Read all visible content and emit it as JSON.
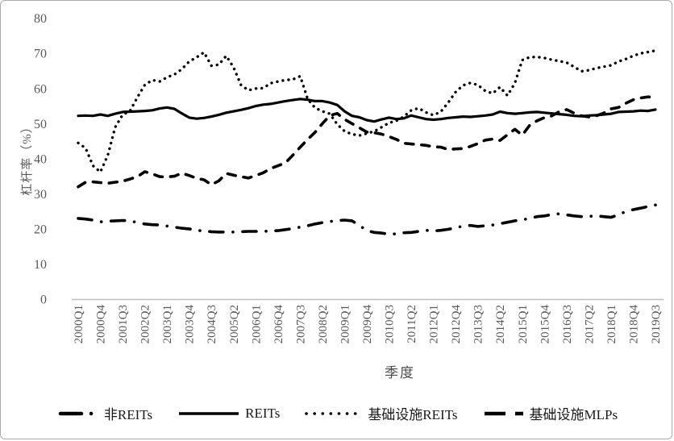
{
  "figure": {
    "legend": [
      {
        "label": "非REITs",
        "style": "dashdot"
      },
      {
        "label": "REITs",
        "style": "solid"
      },
      {
        "label": "基础设施REITs",
        "style": "dotted"
      },
      {
        "label": "基础设施MLPs",
        "style": "dashed"
      }
    ],
    "colors": {
      "line": "#000000",
      "tick_text": "#595959",
      "axis_line": "#bfbfbf"
    }
  },
  "chart_data": {
    "type": "line",
    "title": "",
    "xlabel": "季度",
    "ylabel": "杠杆率（%）",
    "ylim": [
      0,
      80
    ],
    "yticks": [
      0,
      10,
      20,
      30,
      40,
      50,
      60,
      70,
      80
    ],
    "grid": false,
    "legend_position": "bottom",
    "x_start": "2000Q1",
    "x_end": "2019Q3",
    "x_tick_every": 3,
    "x_tick_labels": [
      "2000Q1",
      "2000Q4",
      "2001Q3",
      "2002Q2",
      "2003Q1",
      "2003Q4",
      "2004Q3",
      "2005Q2",
      "2006Q1",
      "2006Q4",
      "2007Q3",
      "2008Q2",
      "2009Q1",
      "2009Q4",
      "2010Q3",
      "2011Q2",
      "2012Q1",
      "2012Q4",
      "2013Q3",
      "2014Q2",
      "2015Q1",
      "2015Q4",
      "2016Q3",
      "2017Q2",
      "2018Q1",
      "2018Q4",
      "2019Q3"
    ],
    "series": [
      {
        "name": "非REITs",
        "line_style": "dashdot",
        "values": [
          23.0,
          22.8,
          22.5,
          22.0,
          22.2,
          22.3,
          22.4,
          22.3,
          21.8,
          21.4,
          21.2,
          21.1,
          20.8,
          20.5,
          20.2,
          20.0,
          19.6,
          19.4,
          19.2,
          19.1,
          19.1,
          19.1,
          19.2,
          19.3,
          19.3,
          19.3,
          19.4,
          19.5,
          19.8,
          20.1,
          20.5,
          20.9,
          21.4,
          21.8,
          22.1,
          22.4,
          22.5,
          22.3,
          21.0,
          19.5,
          19.0,
          18.8,
          18.5,
          18.6,
          18.9,
          19.0,
          19.3,
          19.6,
          19.4,
          19.6,
          19.9,
          20.3,
          20.8,
          21.0,
          20.7,
          20.9,
          21.1,
          21.5,
          21.9,
          22.3,
          22.6,
          23.0,
          23.5,
          23.7,
          24.1,
          24.3,
          24.0,
          23.7,
          23.5,
          23.6,
          23.7,
          23.5,
          23.3,
          24.0,
          25.0,
          25.5,
          25.9,
          26.4,
          26.8
        ]
      },
      {
        "name": "REITs",
        "line_style": "solid",
        "values": [
          52.2,
          52.3,
          52.2,
          52.6,
          52.2,
          52.8,
          53.3,
          53.4,
          53.5,
          53.6,
          53.8,
          54.3,
          54.6,
          54.2,
          52.9,
          51.7,
          51.4,
          51.6,
          52.0,
          52.5,
          53.1,
          53.5,
          53.9,
          54.4,
          55.0,
          55.4,
          55.6,
          56.0,
          56.4,
          56.7,
          57.0,
          56.8,
          56.4,
          56.4,
          56.0,
          55.3,
          53.5,
          52.2,
          51.8,
          51.0,
          50.6,
          51.2,
          51.7,
          51.3,
          51.5,
          52.3,
          51.8,
          51.3,
          51.1,
          51.3,
          51.6,
          51.8,
          52.0,
          51.9,
          52.1,
          52.3,
          52.6,
          53.4,
          53.0,
          52.8,
          53.0,
          53.2,
          53.3,
          53.1,
          52.9,
          52.7,
          52.5,
          52.2,
          52.1,
          52.3,
          52.4,
          52.6,
          52.8,
          53.3,
          53.4,
          53.5,
          53.7,
          53.6,
          54.0
        ]
      },
      {
        "name": "基础设施REITs",
        "line_style": "dotted",
        "values": [
          44.5,
          43.0,
          38.0,
          36.2,
          41.0,
          49.0,
          52.5,
          53.6,
          57.5,
          61.0,
          62.4,
          62.0,
          63.2,
          64.0,
          65.5,
          67.7,
          68.9,
          70.3,
          66.5,
          66.8,
          69.3,
          66.0,
          61.0,
          59.5,
          60.0,
          60.1,
          61.5,
          62.0,
          62.4,
          62.6,
          63.5,
          57.0,
          54.5,
          53.5,
          52.8,
          49.8,
          47.8,
          47.0,
          46.6,
          47.2,
          47.8,
          49.0,
          50.2,
          50.8,
          52.0,
          53.8,
          54.4,
          53.2,
          52.4,
          53.4,
          56.0,
          59.0,
          60.9,
          61.6,
          61.0,
          59.3,
          58.6,
          60.4,
          58.0,
          61.5,
          68.1,
          68.9,
          69.0,
          68.7,
          68.2,
          67.8,
          67.4,
          66.2,
          64.9,
          65.2,
          65.8,
          66.2,
          66.6,
          67.7,
          68.4,
          69.3,
          70.0,
          70.4,
          70.8
        ]
      },
      {
        "name": "基础设施MLPs",
        "line_style": "dashed",
        "values": [
          32.0,
          33.3,
          33.4,
          33.2,
          33.0,
          33.3,
          33.6,
          34.2,
          34.9,
          36.3,
          35.7,
          34.9,
          34.8,
          35.0,
          35.9,
          35.2,
          34.4,
          34.0,
          32.6,
          33.7,
          35.8,
          35.3,
          34.9,
          34.5,
          35.2,
          36.0,
          37.2,
          38.0,
          38.8,
          41.0,
          43.3,
          45.5,
          47.5,
          50.0,
          52.3,
          52.9,
          51.2,
          50.0,
          48.8,
          47.6,
          47.4,
          47.0,
          46.3,
          45.5,
          44.4,
          44.2,
          44.0,
          43.8,
          43.4,
          43.3,
          42.6,
          42.8,
          42.9,
          43.5,
          44.3,
          45.3,
          45.6,
          45.2,
          46.8,
          48.4,
          46.7,
          49.5,
          50.8,
          51.7,
          52.2,
          53.4,
          54.0,
          53.0,
          52.2,
          51.9,
          52.2,
          53.0,
          54.2,
          54.6,
          55.8,
          56.8,
          57.3,
          57.6,
          57.5
        ]
      }
    ]
  }
}
